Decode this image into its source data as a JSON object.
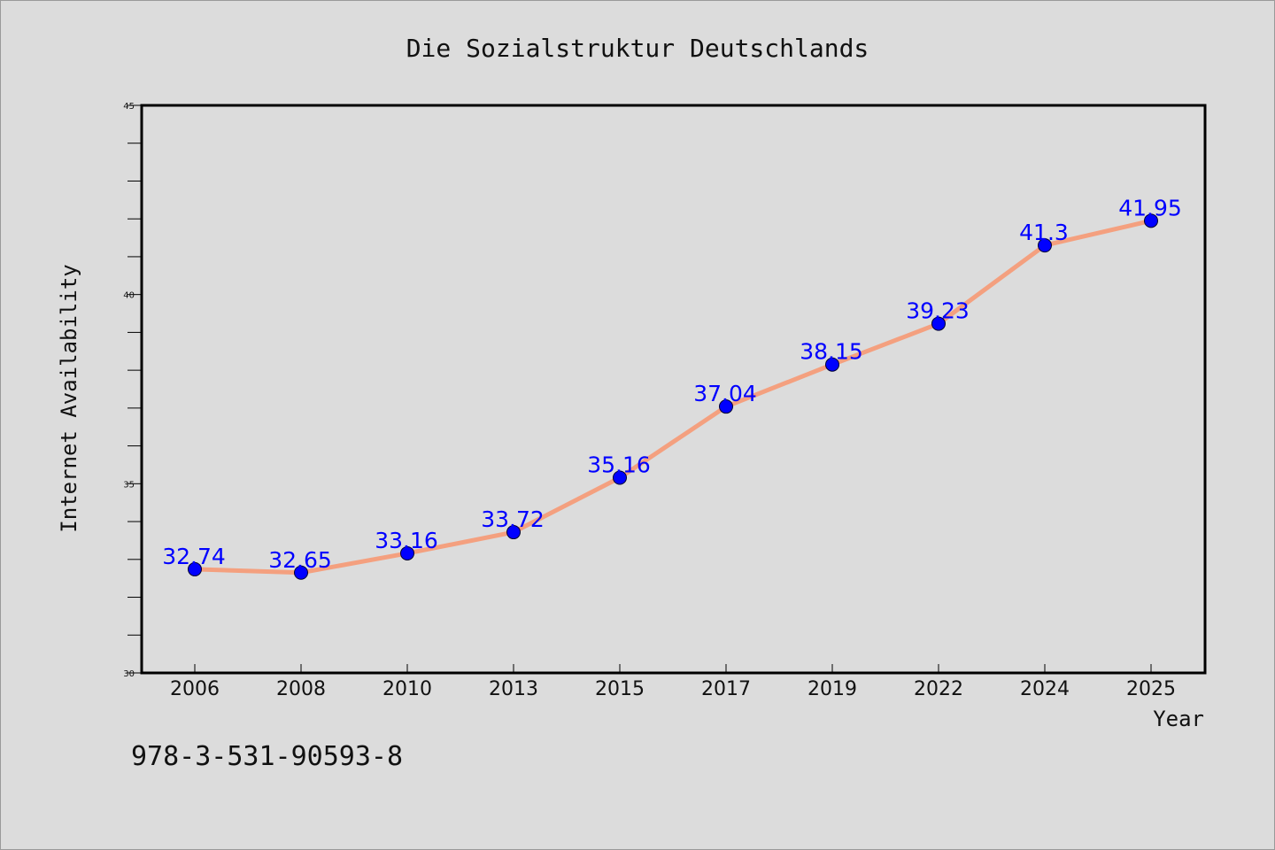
{
  "chart_data": {
    "type": "line",
    "title": "Die Sozialstruktur Deutschlands",
    "xlabel": "Year",
    "ylabel": "Internet Availability",
    "categories": [
      "2006",
      "2008",
      "2010",
      "2013",
      "2015",
      "2017",
      "2019",
      "2022",
      "2024",
      "2025"
    ],
    "series": [
      {
        "values": [
          32.74,
          32.65,
          33.16,
          33.72,
          35.16,
          37.04,
          38.15,
          39.23,
          41.3,
          41.95
        ],
        "labels": [
          "32.74",
          "32.65",
          "33.16",
          "33.72",
          "35.16",
          "37.04",
          "38.15",
          "39.23",
          "41.3",
          "41.95"
        ],
        "line_color": "#f4a07f",
        "marker_color": "#0000ff"
      }
    ],
    "ylim": [
      30,
      45
    ],
    "yticks": [
      "30",
      "35",
      "40",
      "45"
    ],
    "grid": false,
    "legend": "none"
  },
  "footnote": "978-3-531-90593-8"
}
